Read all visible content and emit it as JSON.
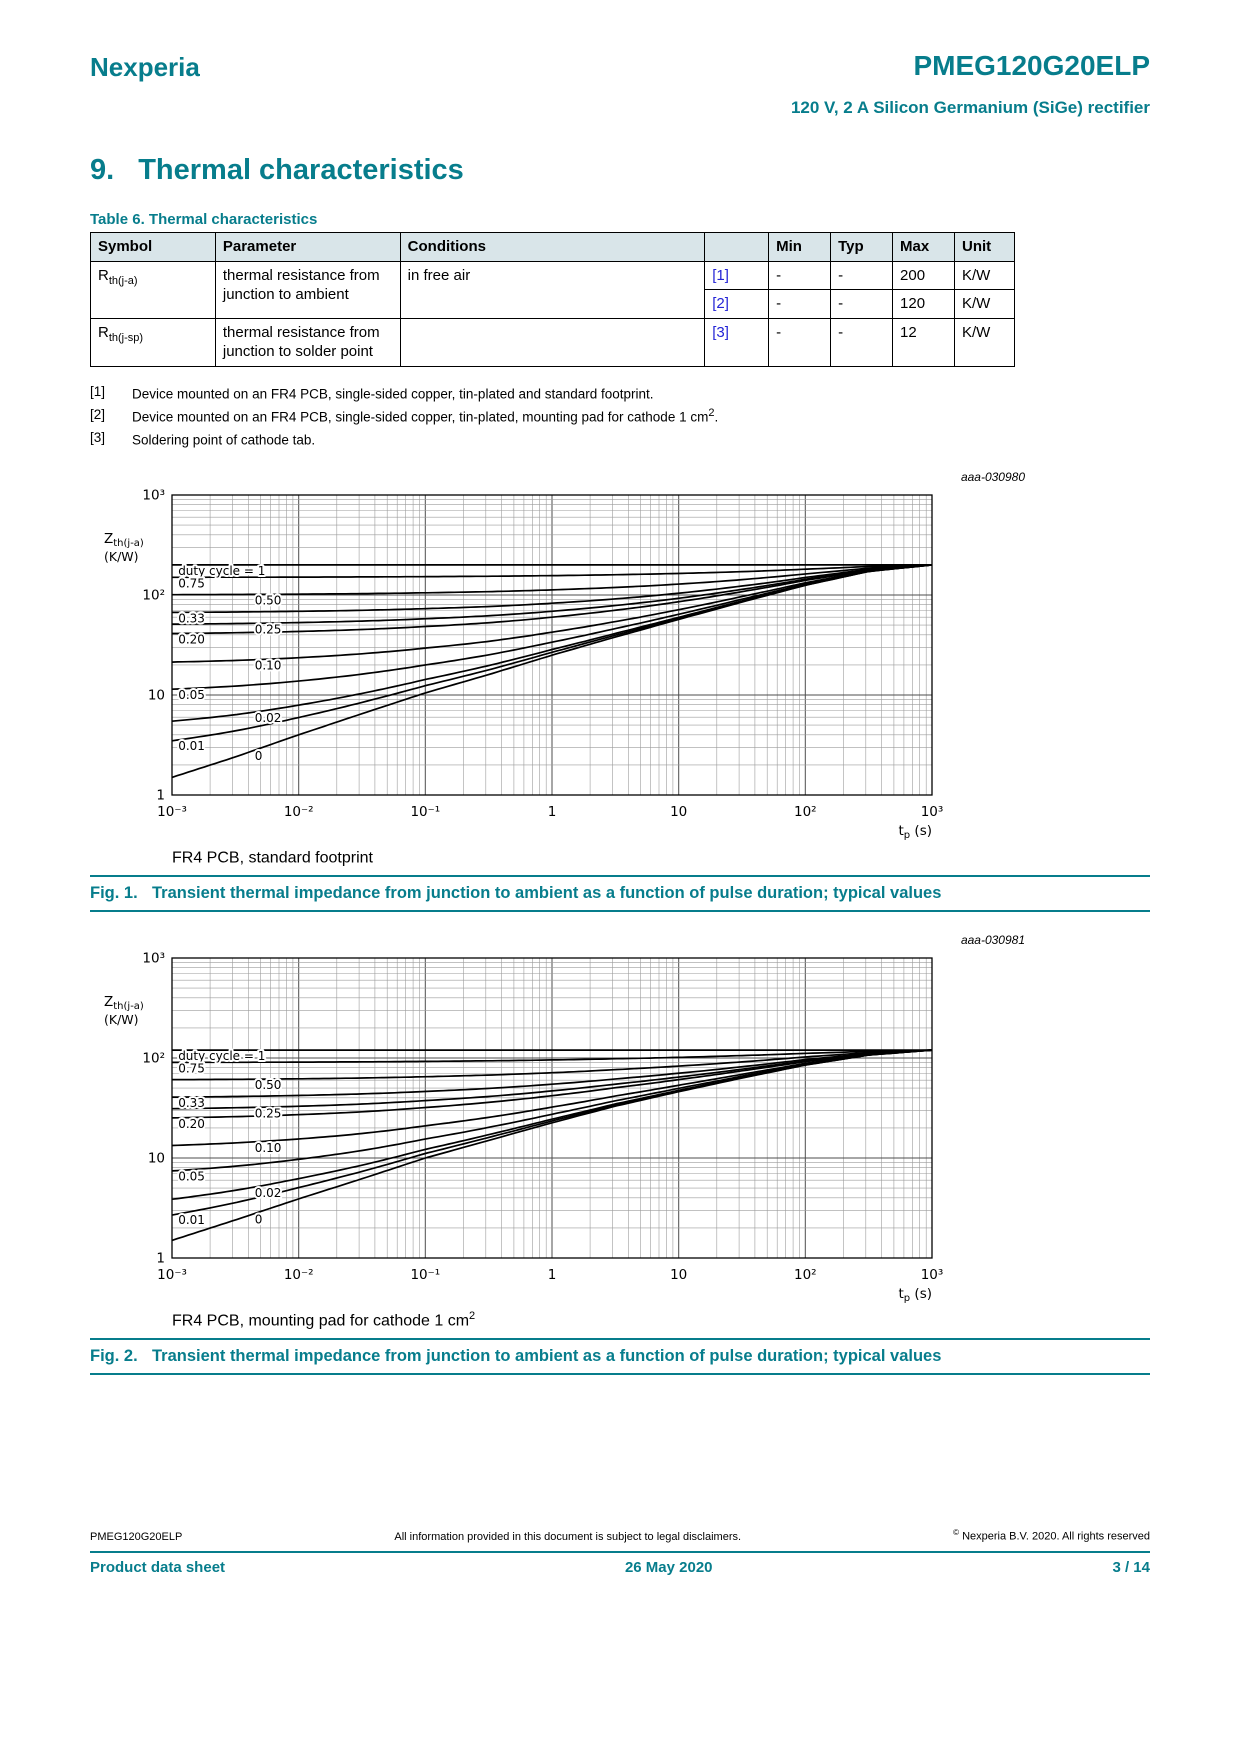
{
  "colors": {
    "accent": "#077d8c",
    "link": "#2424d6",
    "table_header_bg": "#d9e5e9"
  },
  "page": {
    "brand": "Nexperia",
    "title": "PMEG120G20ELP",
    "subtitle": "120 V, 2 A Silicon Germanium (SiGe) rectifier",
    "section_number": "9.",
    "section_title": "Thermal characteristics"
  },
  "table": {
    "caption": "Table 6. Thermal characteristics",
    "headers": [
      "Symbol",
      "Parameter",
      "Conditions",
      "",
      "Min",
      "Typ",
      "Max",
      "Unit"
    ],
    "rows": [
      {
        "symbol_base": "R",
        "symbol_sub": "th(j-a)",
        "parameter": "thermal resistance from junction to ambient",
        "conditions": "in free air",
        "entries": [
          {
            "ref": "[1]",
            "min": "-",
            "typ": "-",
            "max": "200",
            "unit": "K/W"
          },
          {
            "ref": "[2]",
            "min": "-",
            "typ": "-",
            "max": "120",
            "unit": "K/W"
          }
        ]
      },
      {
        "symbol_base": "R",
        "symbol_sub": "th(j-sp)",
        "parameter": "thermal resistance from junction to solder point",
        "conditions": "",
        "entries": [
          {
            "ref": "[3]",
            "min": "-",
            "typ": "-",
            "max": "12",
            "unit": "K/W"
          }
        ]
      }
    ]
  },
  "footnotes": [
    {
      "marker": "[1]",
      "text": "Device mounted on an FR4 PCB, single-sided copper, tin-plated and standard footprint.",
      "sup": "",
      "tail": ""
    },
    {
      "marker": "[2]",
      "text": "Device mounted on an FR4 PCB, single-sided copper, tin-plated, mounting pad for cathode 1 cm",
      "sup": "2",
      "tail": "."
    },
    {
      "marker": "[3]",
      "text": "Soldering point of cathode tab.",
      "sup": "",
      "tail": ""
    }
  ],
  "figures": [
    {
      "caption": "FR4 PCB, standard footprint",
      "caption_sup": "",
      "fig_label": "Fig. 1.",
      "fig_title": "Transient thermal impedance from junction to ambient as a function of pulse duration; typical values"
    },
    {
      "caption": "FR4 PCB, mounting pad for cathode 1 cm",
      "caption_sup": "2",
      "fig_label": "Fig. 2.",
      "fig_title": "Transient thermal impedance from junction to ambient as a function of pulse duration; typical values"
    }
  ],
  "chart_data": [
    {
      "type": "line",
      "annotation": "aaa-030980",
      "title": "Transient thermal impedance from junction to ambient as a function of pulse duration; typical values",
      "xlabel": "tp (s)",
      "ylabel": "Zth(j-a) (K/W)",
      "xlabel_parts": {
        "base": "t",
        "sub": "p",
        "unit": "(s)"
      },
      "ylabel_parts": {
        "base": "Z",
        "sub": "th(j-a)",
        "unit": "(K/W)"
      },
      "x_scale": "log",
      "y_scale": "log",
      "xlim": [
        0.001,
        1000
      ],
      "ylim": [
        1,
        1000
      ],
      "x_ticks": [
        "10⁻³",
        "10⁻²",
        "10⁻¹",
        "1",
        "10",
        "10²",
        "10³"
      ],
      "y_ticks": [
        "1",
        "10",
        "10²",
        "10³"
      ],
      "rth_ja": 200,
      "duty_cycles": [
        1,
        0.75,
        0.5,
        0.33,
        0.25,
        0.2,
        0.1,
        0.05,
        0.02,
        0.01,
        0
      ],
      "single_pulse": {
        "t_s": [
          0.001,
          0.00316,
          0.01,
          0.0316,
          0.1,
          0.316,
          1,
          3.16,
          10,
          31.6,
          100,
          316,
          1000
        ],
        "zth_kw": [
          1.5,
          2.4,
          4.0,
          6.5,
          10.5,
          16,
          25,
          38,
          57,
          85,
          125,
          172,
          200
        ]
      },
      "curve_labels": [
        {
          "text": "duty cycle = 1",
          "duty": 1,
          "column": 0
        },
        {
          "text": "0.75",
          "duty": 0.75,
          "column": 0
        },
        {
          "text": "0.50",
          "duty": 0.5,
          "column": 1
        },
        {
          "text": "0.33",
          "duty": 0.33,
          "column": 0
        },
        {
          "text": "0.25",
          "duty": 0.25,
          "column": 1
        },
        {
          "text": "0.20",
          "duty": 0.2,
          "column": 0
        },
        {
          "text": "0.10",
          "duty": 0.1,
          "column": 1
        },
        {
          "text": "0.05",
          "duty": 0.05,
          "column": 0
        },
        {
          "text": "0.02",
          "duty": 0.02,
          "column": 1
        },
        {
          "text": "0.01",
          "duty": 0.01,
          "column": 0
        },
        {
          "text": "0",
          "duty": 0,
          "column": 1
        }
      ]
    },
    {
      "type": "line",
      "annotation": "aaa-030981",
      "title": "Transient thermal impedance from junction to ambient as a function of pulse duration; typical values",
      "xlabel": "tp (s)",
      "ylabel": "Zth(j-a) (K/W)",
      "xlabel_parts": {
        "base": "t",
        "sub": "p",
        "unit": "(s)"
      },
      "ylabel_parts": {
        "base": "Z",
        "sub": "th(j-a)",
        "unit": "(K/W)"
      },
      "x_scale": "log",
      "y_scale": "log",
      "xlim": [
        0.001,
        1000
      ],
      "ylim": [
        1,
        1000
      ],
      "x_ticks": [
        "10⁻³",
        "10⁻²",
        "10⁻¹",
        "1",
        "10",
        "10²",
        "10³"
      ],
      "y_ticks": [
        "1",
        "10",
        "10²",
        "10³"
      ],
      "rth_ja": 120,
      "duty_cycles": [
        1,
        0.75,
        0.5,
        0.33,
        0.25,
        0.2,
        0.1,
        0.05,
        0.02,
        0.01,
        0
      ],
      "single_pulse": {
        "t_s": [
          0.001,
          0.00316,
          0.01,
          0.0316,
          0.1,
          0.316,
          1,
          3.16,
          10,
          31.6,
          100,
          316,
          1000
        ],
        "zth_kw": [
          1.5,
          2.4,
          3.9,
          6.2,
          10,
          15,
          22.5,
          33,
          46,
          63,
          85,
          107,
          120
        ]
      },
      "curve_labels": [
        {
          "text": "duty cycle = 1",
          "duty": 1,
          "column": 0
        },
        {
          "text": "0.75",
          "duty": 0.75,
          "column": 0
        },
        {
          "text": "0.50",
          "duty": 0.5,
          "column": 1
        },
        {
          "text": "0.33",
          "duty": 0.33,
          "column": 0
        },
        {
          "text": "0.25",
          "duty": 0.25,
          "column": 1
        },
        {
          "text": "0.20",
          "duty": 0.2,
          "column": 0
        },
        {
          "text": "0.10",
          "duty": 0.1,
          "column": 1
        },
        {
          "text": "0.05",
          "duty": 0.05,
          "column": 0
        },
        {
          "text": "0.02",
          "duty": 0.02,
          "column": 1
        },
        {
          "text": "0.01",
          "duty": 0.01,
          "column": 0
        },
        {
          "text": "0",
          "duty": 0,
          "column": 1
        }
      ]
    }
  ],
  "footer": {
    "doc_id": "PMEG120G20ELP",
    "disclaimer": "All information provided in this document is subject to legal disclaimers.",
    "copyright_symbol": "©",
    "copyright": "Nexperia B.V. 2020. All rights reserved",
    "doc_type": "Product data sheet",
    "date": "26 May 2020",
    "page_info": "3 / 14"
  }
}
